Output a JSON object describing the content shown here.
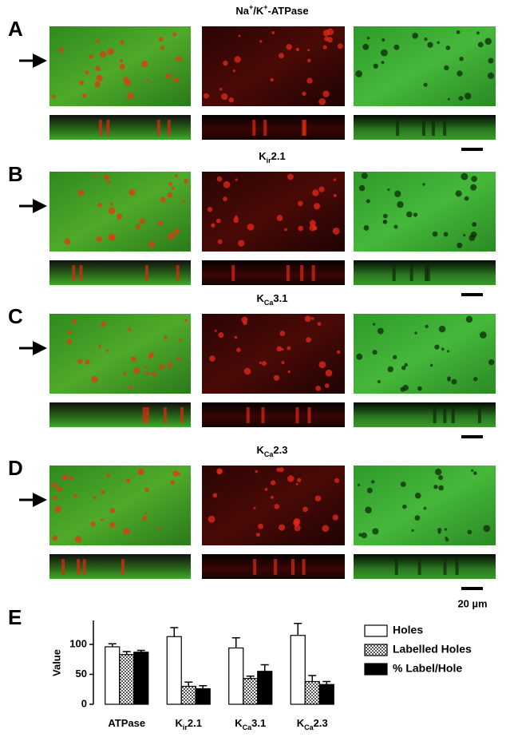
{
  "panels": [
    {
      "letter": "A",
      "title": [
        {
          "text": "Na"
        },
        {
          "sup": "+"
        },
        {
          "text": "/K"
        },
        {
          "sup": "+"
        },
        {
          "text": "-ATPase"
        }
      ]
    },
    {
      "letter": "B",
      "title": [
        {
          "text": "K"
        },
        {
          "sub": "ir"
        },
        {
          "text": "2.1"
        }
      ]
    },
    {
      "letter": "C",
      "title": [
        {
          "text": "K"
        },
        {
          "sub": "Ca"
        },
        {
          "text": "3.1"
        }
      ]
    },
    {
      "letter": "D",
      "title": [
        {
          "text": "K"
        },
        {
          "sub": "Ca"
        },
        {
          "text": "2.3"
        }
      ]
    }
  ],
  "scale_label": "20 µm",
  "chart_letter": "E",
  "chart_data": {
    "type": "bar",
    "ylabel": "Value",
    "categories": [
      [
        {
          "text": "ATPase"
        }
      ],
      [
        {
          "text": "K"
        },
        {
          "sub": "ir"
        },
        {
          "text": "2.1"
        }
      ],
      [
        {
          "text": "K"
        },
        {
          "sub": "Ca"
        },
        {
          "text": "3.1"
        }
      ],
      [
        {
          "text": "K"
        },
        {
          "sub": "Ca"
        },
        {
          "text": "2.3"
        }
      ]
    ],
    "series": [
      {
        "name": "Holes",
        "color": "#ffffff",
        "values": [
          96,
          113,
          94,
          115
        ],
        "errors": [
          5,
          15,
          17,
          20
        ]
      },
      {
        "name": "Labelled Holes",
        "color": "checkered",
        "values": [
          83,
          30,
          43,
          38
        ],
        "errors": [
          5,
          7,
          4,
          10
        ]
      },
      {
        "name": "% Label/Hole",
        "color": "#000000",
        "values": [
          87,
          26,
          55,
          33
        ],
        "errors": [
          3,
          5,
          11,
          5
        ]
      }
    ],
    "ylim": [
      0,
      140
    ],
    "yticks": [
      0,
      50,
      100
    ]
  }
}
